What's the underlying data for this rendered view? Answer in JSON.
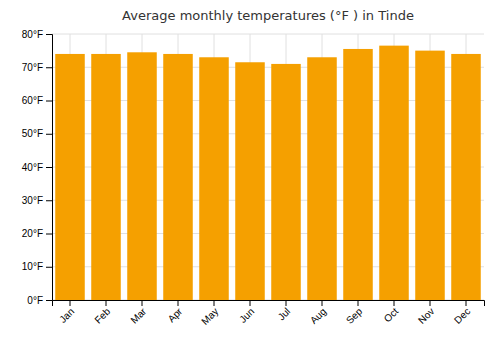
{
  "chart_data": {
    "type": "bar",
    "title": "Average monthly temperatures (°F ) in Tinde",
    "categories": [
      "Jan",
      "Feb",
      "Mar",
      "Apr",
      "May",
      "Jun",
      "Jul",
      "Aug",
      "Sep",
      "Oct",
      "Nov",
      "Dec"
    ],
    "values": [
      74,
      74,
      74.5,
      74,
      73,
      71.5,
      71,
      73,
      75.5,
      76.5,
      75,
      74
    ],
    "color": "#F5A000",
    "ylim": [
      0,
      80
    ],
    "yticks": [
      {
        "value": 0,
        "label": "0°F"
      },
      {
        "value": 10,
        "label": "10°F"
      },
      {
        "value": 20,
        "label": "20°F"
      },
      {
        "value": 30,
        "label": "30°F"
      },
      {
        "value": 40,
        "label": "40°F"
      },
      {
        "value": 50,
        "label": "50°F"
      },
      {
        "value": 60,
        "label": "60°F"
      },
      {
        "value": 70,
        "label": "70°F"
      },
      {
        "value": 80,
        "label": "80°F"
      }
    ],
    "grid": true
  }
}
